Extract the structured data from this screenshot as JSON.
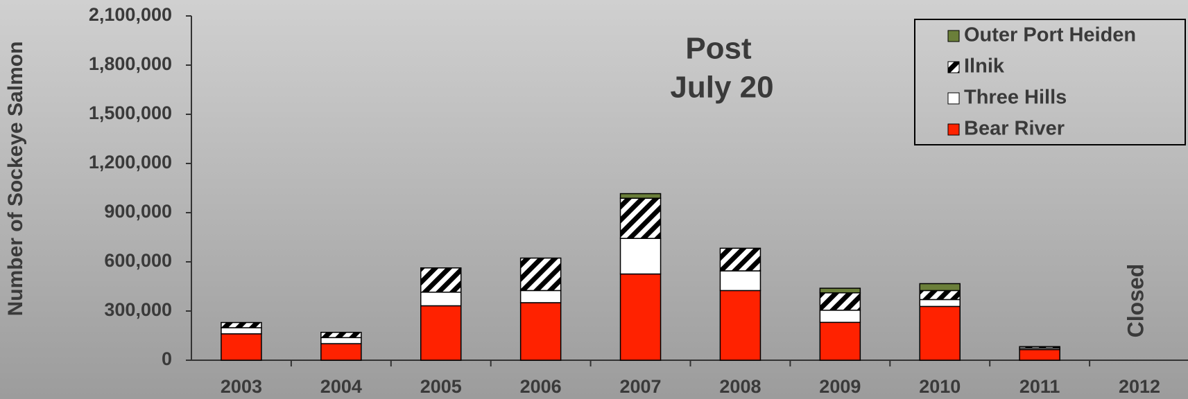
{
  "chart_data": {
    "type": "stacked_bar",
    "annotations": [
      "Post",
      "July 20",
      "Closed"
    ],
    "y_label": "Number of Sockeye Salmon",
    "categories": [
      "2003",
      "2004",
      "2005",
      "2006",
      "2007",
      "2008",
      "2009",
      "2010",
      "2011",
      "2012"
    ],
    "series": [
      {
        "name": "Bear River",
        "color": "#ff2200",
        "values": [
          161000,
          101000,
          332000,
          351000,
          526000,
          425000,
          231000,
          328000,
          65000,
          null
        ]
      },
      {
        "name": "Three Hills",
        "color": "#ffffff",
        "values": [
          37000,
          37000,
          83000,
          74000,
          217000,
          120000,
          74000,
          42000,
          9000,
          null
        ]
      },
      {
        "name": "Ilnik",
        "color": "#000000",
        "hatch": true,
        "values": [
          32000,
          32000,
          148000,
          198000,
          245000,
          138000,
          106000,
          55000,
          9000,
          null
        ]
      },
      {
        "name": "Outer Port Heiden",
        "color": "#6b7f3a",
        "values": [
          0,
          0,
          0,
          0,
          28000,
          0,
          28000,
          42000,
          0,
          null
        ]
      }
    ],
    "ylim": [
      0,
      2100000
    ],
    "yticks": [
      0,
      {
        "value": 300000,
        "label": "300,000"
      },
      {
        "value": 600000,
        "label": "600,000"
      },
      {
        "value": 900000,
        "label": "900,000"
      },
      {
        "value": 1200000,
        "label": "1,200,000"
      },
      {
        "value": 1500000,
        "label": "1,500,000"
      },
      {
        "value": 1800000,
        "label": "1,800,000"
      },
      {
        "value": 2100000,
        "label": "2,100,000"
      }
    ],
    "legend": "top-right"
  }
}
